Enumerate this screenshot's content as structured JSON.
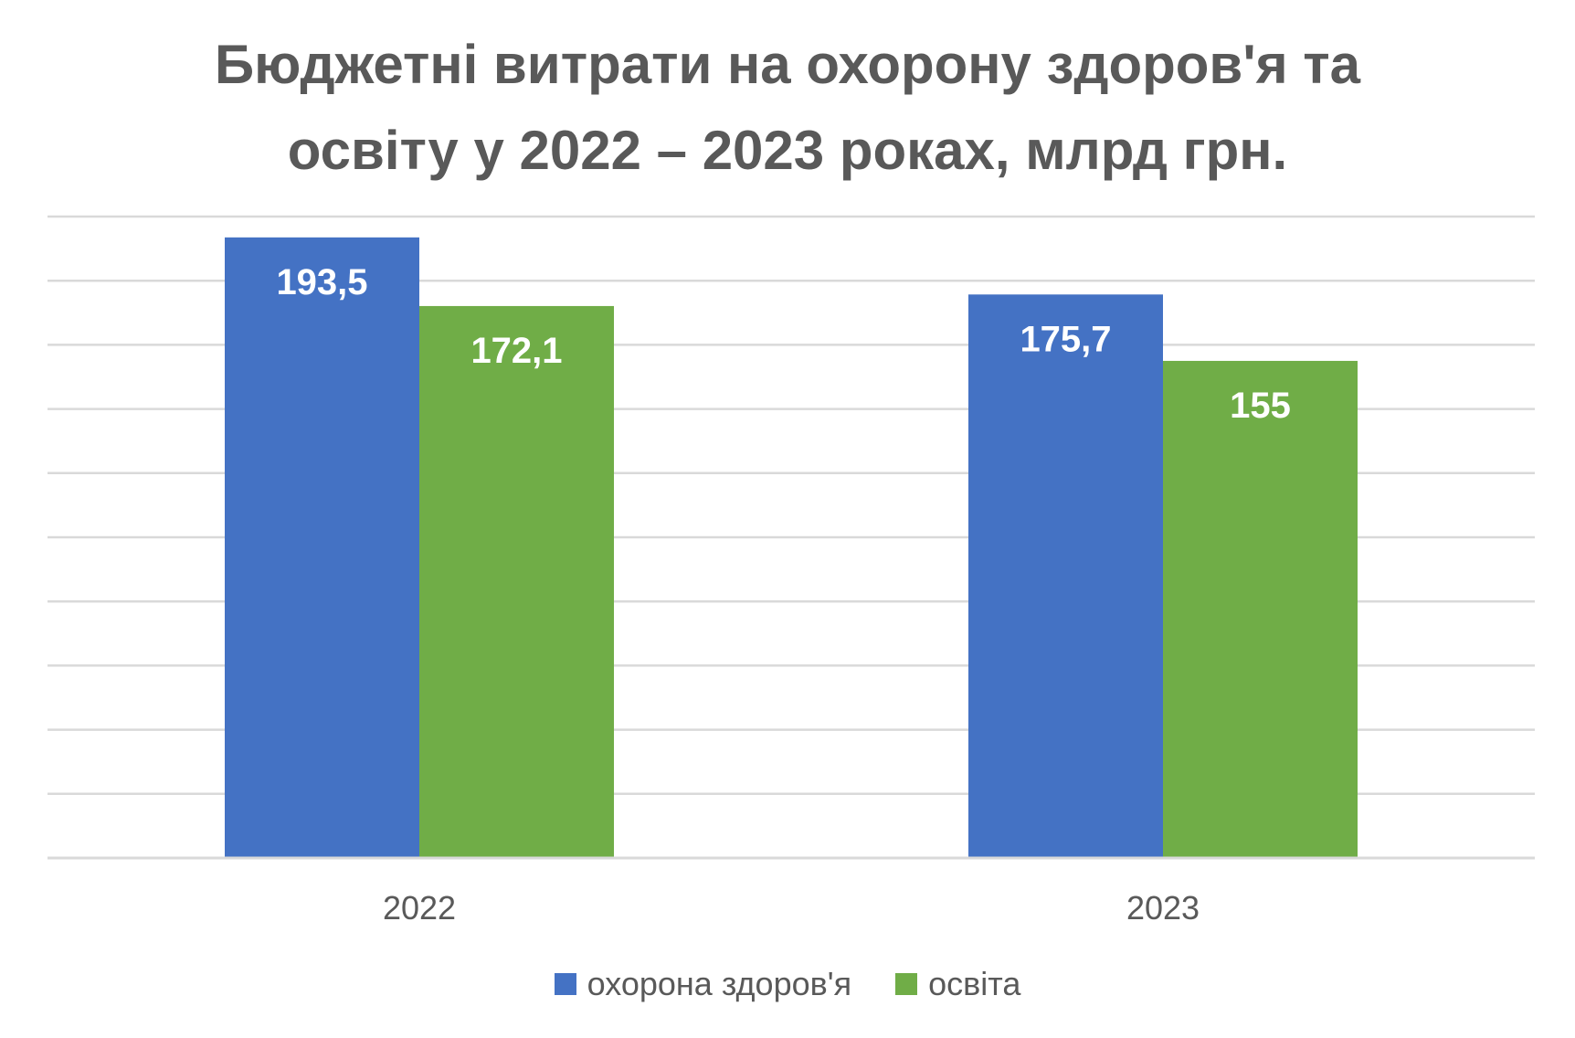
{
  "chart_data": {
    "type": "bar",
    "title_lines": [
      "Бюджетні витрати на охорону здоров'я та",
      "освіту у 2022 – 2023 роках, млрд грн."
    ],
    "categories": [
      "2022",
      "2023"
    ],
    "series": [
      {
        "name": "охорона здоров'я",
        "values": [
          193.5,
          175.7
        ],
        "labels": [
          "193,5",
          "175,7"
        ],
        "color": "#4472C4"
      },
      {
        "name": "освіта",
        "values": [
          172.1,
          155
        ],
        "labels": [
          "172,1",
          "155"
        ],
        "color": "#70AD47"
      }
    ],
    "ylim": [
      0,
      200
    ],
    "gridlines": true,
    "gridline_step": 20,
    "y_tick_labels_shown": false,
    "data_labels_color": "#FFFFFF",
    "legend_position": "bottom"
  }
}
